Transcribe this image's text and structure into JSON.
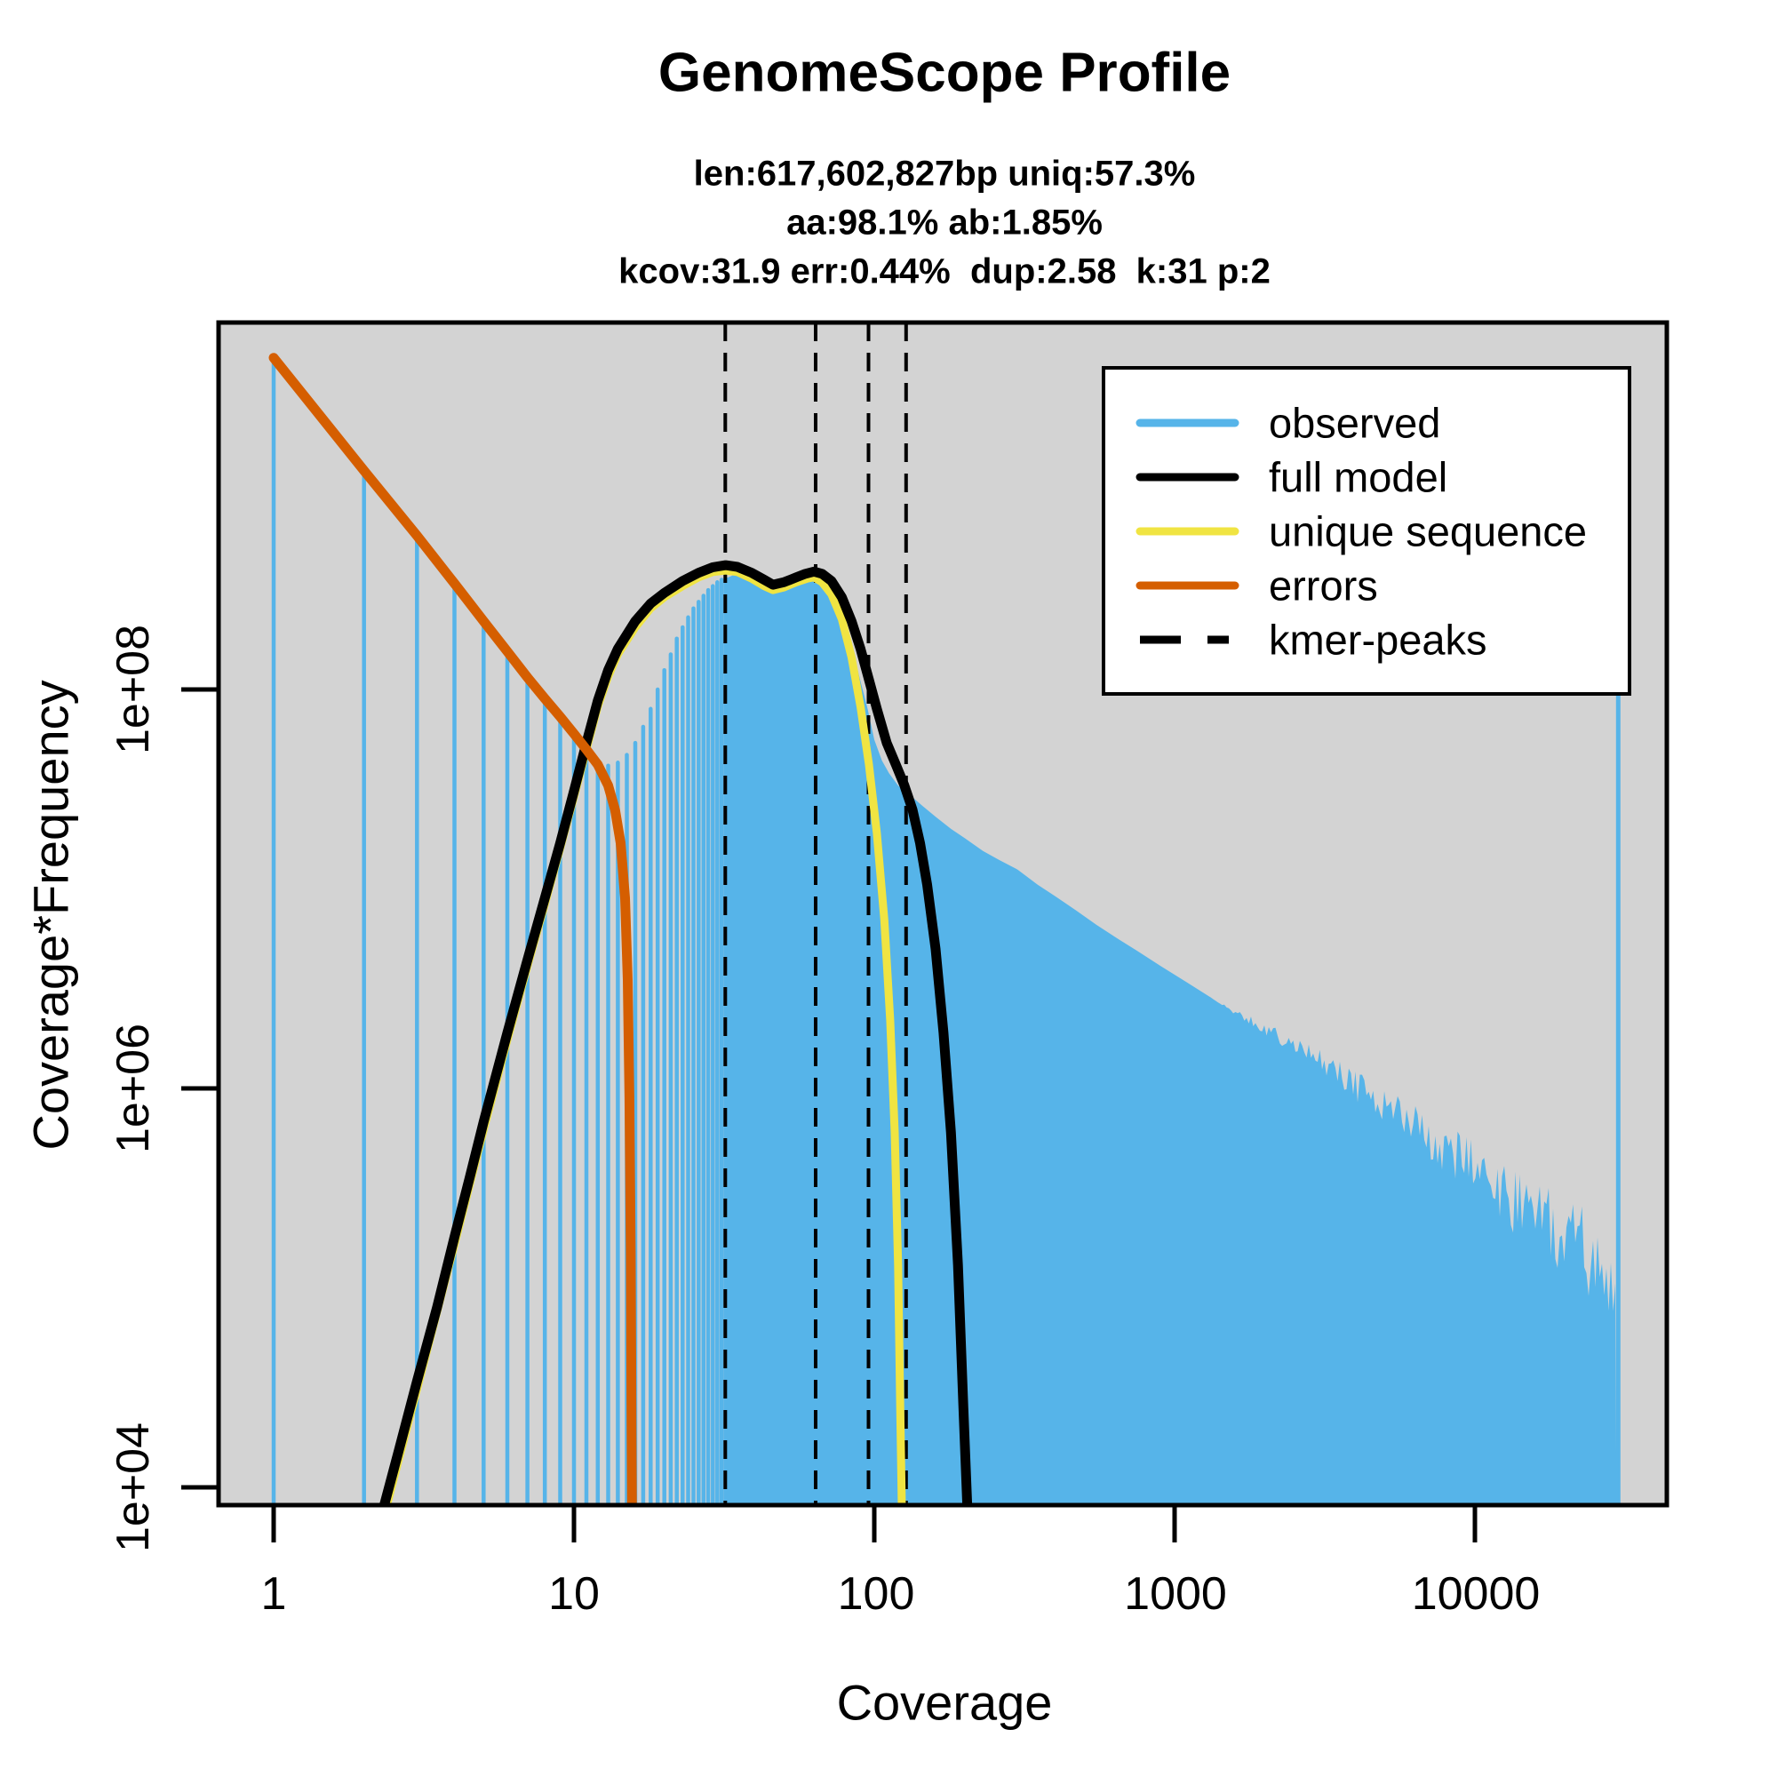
{
  "title": "GenomeScope Profile",
  "subtitle_lines": [
    "len:617,602,827bp uniq:57.3%",
    "aa:98.1% ab:1.85%",
    "kcov:31.9 err:0.44%  dup:2.58  k:31 p:2"
  ],
  "axes": {
    "x": {
      "label": "Coverage",
      "scale": "log",
      "tick_labels": [
        "1",
        "10",
        "100",
        "1000",
        "10000"
      ],
      "tick_values": [
        1,
        10,
        100,
        1000,
        10000
      ],
      "range": [
        0.65,
        43000
      ]
    },
    "y": {
      "label": "Coverage*Frequency",
      "scale": "log",
      "tick_labels": [
        "1e+04",
        "1e+06",
        "1e+08"
      ],
      "tick_values": [
        10000,
        1000000,
        100000000
      ],
      "range": [
        8100,
        6900000000
      ]
    }
  },
  "legend": {
    "items": [
      {
        "label": "observed",
        "color": "#56B4E9",
        "style": "solid"
      },
      {
        "label": "full model",
        "color": "#000000",
        "style": "solid"
      },
      {
        "label": "unique sequence",
        "color": "#F0E442",
        "style": "solid"
      },
      {
        "label": "errors",
        "color": "#D55E00",
        "style": "solid"
      },
      {
        "label": "kmer-peaks",
        "color": "#000000",
        "style": "dashed"
      }
    ]
  },
  "colors": {
    "panel": "#D3D3D3",
    "observed": "#56B4E9",
    "full_model": "#000000",
    "unique_sequence": "#F0E442",
    "errors": "#D55E00",
    "kmer_peaks": "#000000",
    "legend_bg": "#FFFFFF"
  },
  "chart_data": {
    "type": "area",
    "title": "GenomeScope Profile",
    "xlabel": "Coverage",
    "ylabel": "Coverage*Frequency",
    "xlim": [
      0.65,
      43000
    ],
    "ylim": [
      8100,
      6900000000
    ],
    "grid": false,
    "legend_position": "top-right",
    "kmer_peaks": [
      31.9,
      63.8,
      95.7,
      127.6
    ],
    "observed_bar_max_cov": 32,
    "observed_envelope": [
      [
        1,
        4550000000.0
      ],
      [
        2,
        1200000000.0
      ],
      [
        3,
        570000000.0
      ],
      [
        4,
        325000000.0
      ],
      [
        5,
        210000000.0
      ],
      [
        6,
        148000000.0
      ],
      [
        7,
        110000000.0
      ],
      [
        8,
        86000000.0
      ],
      [
        9,
        69000000.0
      ],
      [
        10,
        57000000.0
      ],
      [
        11,
        47000000.0
      ],
      [
        12,
        42500000.0
      ],
      [
        13,
        41500000.0
      ],
      [
        14,
        43000000.0
      ],
      [
        15,
        47000000.0
      ],
      [
        16,
        54000000.0
      ],
      [
        17,
        65000000.0
      ],
      [
        18,
        80000000.0
      ],
      [
        19,
        100000000.0
      ],
      [
        20,
        125000000.0
      ],
      [
        21,
        150000000.0
      ],
      [
        22,
        180000000.0
      ],
      [
        23,
        205000000.0
      ],
      [
        24,
        230000000.0
      ],
      [
        25,
        255000000.0
      ],
      [
        26,
        275000000.0
      ],
      [
        27,
        295000000.0
      ],
      [
        28,
        315000000.0
      ],
      [
        29,
        330000000.0
      ],
      [
        30,
        345000000.0
      ],
      [
        31,
        355000000.0
      ],
      [
        32,
        360000000.0
      ],
      [
        34,
        375000000.0
      ],
      [
        36,
        380000000.0
      ],
      [
        38,
        375000000.0
      ],
      [
        40,
        360000000.0
      ],
      [
        43,
        335000000.0
      ],
      [
        46,
        315000000.0
      ],
      [
        50,
        325000000.0
      ],
      [
        54,
        340000000.0
      ],
      [
        58,
        350000000.0
      ],
      [
        62,
        355000000.0
      ],
      [
        66,
        345000000.0
      ],
      [
        70,
        320000000.0
      ],
      [
        75,
        275000000.0
      ],
      [
        80,
        210000000.0
      ],
      [
        85,
        155000000.0
      ],
      [
        90,
        110000000.0
      ],
      [
        95,
        80000000.0
      ],
      [
        100,
        56000000.0
      ],
      [
        106,
        44000000.0
      ],
      [
        112,
        38000000.0
      ],
      [
        120,
        33000000.0
      ],
      [
        130,
        30000000.0
      ],
      [
        145,
        26000000.0
      ],
      [
        160,
        23000000.0
      ],
      [
        180,
        20000000.0
      ],
      [
        200,
        18000000.0
      ],
      [
        230,
        15500000.0
      ],
      [
        260,
        14000000.0
      ],
      [
        300,
        12500000.0
      ],
      [
        350,
        10500000.0
      ],
      [
        400,
        9200000.0
      ],
      [
        470,
        7800000.0
      ],
      [
        550,
        6600000.0
      ],
      [
        650,
        5600000.0
      ],
      [
        750,
        4900000.0
      ],
      [
        900,
        4100000.0
      ],
      [
        1100,
        3400000.0
      ],
      [
        1300,
        2900000.0
      ],
      [
        1600,
        2400000.0
      ],
      [
        2000,
        2000000.0
      ],
      [
        2500,
        1650000.0
      ],
      [
        3000,
        1400000.0
      ],
      [
        4000,
        1050000.0
      ],
      [
        5000,
        840000.0
      ],
      [
        6500,
        640000.0
      ],
      [
        8000,
        520000.0
      ],
      [
        10000,
        410000.0
      ],
      [
        12500,
        320000.0
      ],
      [
        15000,
        270000.0
      ],
      [
        18000,
        225000.0
      ],
      [
        22000,
        185000.0
      ],
      [
        26000,
        155000.0
      ],
      [
        30000,
        135000.0
      ]
    ],
    "max_coverage_spike": {
      "cov": 30000,
      "value": 300000000.0
    },
    "tail_noise": {
      "start_cov": 1300,
      "max_amplitude": 0.5,
      "seed": 20240131
    },
    "full_model": [
      [
        2.3,
        7500.0
      ],
      [
        2.6,
        15000.0
      ],
      [
        3,
        34000.0
      ],
      [
        3.5,
        80000.0
      ],
      [
        4,
        180000.0
      ],
      [
        4.5,
        360000.0
      ],
      [
        5,
        680000.0
      ],
      [
        6,
        1900000.0
      ],
      [
        7,
        4400000.0
      ],
      [
        8,
        9000000.0
      ],
      [
        9,
        17000000.0
      ],
      [
        10,
        31000000.0
      ],
      [
        11,
        54000000.0
      ],
      [
        12,
        88000000.0
      ],
      [
        13,
        125000000.0
      ],
      [
        14,
        160000000.0
      ],
      [
        16,
        220000000.0
      ],
      [
        18,
        270000000.0
      ],
      [
        20,
        305000000.0
      ],
      [
        23,
        350000000.0
      ],
      [
        26,
        385000000.0
      ],
      [
        29,
        410000000.0
      ],
      [
        32,
        420000000.0
      ],
      [
        35,
        412000000.0
      ],
      [
        39,
        385000000.0
      ],
      [
        43,
        355000000.0
      ],
      [
        46,
        335000000.0
      ],
      [
        50,
        345000000.0
      ],
      [
        55,
        365000000.0
      ],
      [
        59,
        380000000.0
      ],
      [
        63,
        390000000.0
      ],
      [
        67,
        380000000.0
      ],
      [
        72,
        350000000.0
      ],
      [
        78,
        290000000.0
      ],
      [
        84,
        220000000.0
      ],
      [
        90,
        160000000.0
      ],
      [
        96,
        112000000.0
      ],
      [
        102,
        80000000.0
      ],
      [
        110,
        54000000.0
      ],
      [
        118,
        42000000.0
      ],
      [
        126,
        33000000.0
      ],
      [
        134,
        25000000.0
      ],
      [
        142,
        17000000.0
      ],
      [
        150,
        10500000.0
      ],
      [
        160,
        5000000.0
      ],
      [
        170,
        1900000.0
      ],
      [
        180,
        600000.0
      ],
      [
        190,
        130000.0
      ],
      [
        198,
        25000.0
      ],
      [
        204,
        8000.0
      ]
    ],
    "unique_sequence": [
      [
        2.35,
        7500.0
      ],
      [
        3,
        31000.0
      ],
      [
        4,
        165000.0
      ],
      [
        5,
        620000.0
      ],
      [
        6,
        1750000.0
      ],
      [
        7,
        4100000.0
      ],
      [
        8,
        8400000.0
      ],
      [
        9,
        16000000.0
      ],
      [
        10,
        29000000.0
      ],
      [
        11,
        50000000.0
      ],
      [
        12,
        82000000.0
      ],
      [
        13,
        116000000.0
      ],
      [
        14,
        150000000.0
      ],
      [
        16,
        205000000.0
      ],
      [
        18,
        255000000.0
      ],
      [
        20,
        290000000.0
      ],
      [
        23,
        330000000.0
      ],
      [
        26,
        365000000.0
      ],
      [
        29,
        388000000.0
      ],
      [
        32,
        395000000.0
      ],
      [
        35,
        388000000.0
      ],
      [
        39,
        360000000.0
      ],
      [
        43,
        330000000.0
      ],
      [
        46,
        315000000.0
      ],
      [
        50,
        325000000.0
      ],
      [
        55,
        345000000.0
      ],
      [
        60,
        360000000.0
      ],
      [
        63,
        365000000.0
      ],
      [
        67,
        345000000.0
      ],
      [
        72,
        300000000.0
      ],
      [
        78,
        225000000.0
      ],
      [
        84,
        145000000.0
      ],
      [
        90,
        82000000.0
      ],
      [
        96,
        42000000.0
      ],
      [
        102,
        19000000.0
      ],
      [
        108,
        7000000.0
      ],
      [
        113,
        2200000.0
      ],
      [
        117,
        600000.0
      ],
      [
        120,
        130000.0
      ],
      [
        122,
        25000.0
      ],
      [
        123.5,
        8000.0
      ]
    ],
    "errors": [
      [
        1,
        4600000000.0
      ],
      [
        2,
        1250000000.0
      ],
      [
        3,
        590000000.0
      ],
      [
        4,
        340000000.0
      ],
      [
        5,
        220000000.0
      ],
      [
        6,
        155000000.0
      ],
      [
        7,
        115000000.0
      ],
      [
        8,
        90000000.0
      ],
      [
        9,
        73000000.0
      ],
      [
        10,
        60000000.0
      ],
      [
        11,
        50000000.0
      ],
      [
        12,
        42000000.0
      ],
      [
        13,
        33000000.0
      ],
      [
        13.7,
        25000000.0
      ],
      [
        14.3,
        17000000.0
      ],
      [
        14.8,
        9000000.0
      ],
      [
        15.1,
        3500000.0
      ],
      [
        15.3,
        900000.0
      ],
      [
        15.45,
        150000.0
      ],
      [
        15.55,
        20000.0
      ],
      [
        15.6,
        8000.0
      ]
    ]
  }
}
